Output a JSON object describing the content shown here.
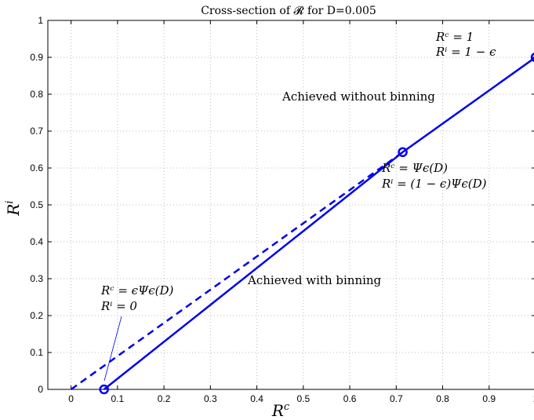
{
  "chart_data": {
    "type": "line",
    "title": "Cross-section of 𝓡 for D=0.005",
    "xlabel": "R",
    "xlabel_sup": "c",
    "ylabel": "R",
    "ylabel_sup": "i",
    "xlim": [
      -0.05,
      1.0
    ],
    "ylim": [
      0,
      1.0
    ],
    "xticks": [
      "0",
      "0.1",
      "0.2",
      "0.3",
      "0.4",
      "0.5",
      "0.6",
      "0.7",
      "0.8",
      "0.9",
      "1"
    ],
    "yticks": [
      "0",
      "0.1",
      "0.2",
      "0.3",
      "0.4",
      "0.5",
      "0.6",
      "0.7",
      "0.8",
      "0.9",
      "1"
    ],
    "grid": true,
    "color": "#0000ee",
    "series": [
      {
        "style": "solid",
        "x": [
          0.071,
          0.714,
          1.0
        ],
        "y": [
          0.0,
          0.643,
          0.9
        ]
      },
      {
        "style": "dashed",
        "x": [
          0.0,
          0.714
        ],
        "y": [
          0.0,
          0.643
        ]
      }
    ],
    "markers": [
      {
        "x": 0.071,
        "y": 0.0
      },
      {
        "x": 0.714,
        "y": 0.643
      },
      {
        "x": 1.0,
        "y": 0.9
      }
    ],
    "annotations": [
      {
        "text": "Achieved without binning"
      },
      {
        "text": "Achieved with binning"
      },
      {
        "lines": [
          "Rᶜ = 1",
          "Rⁱ = 1 − ϵ"
        ]
      },
      {
        "lines": [
          "Rᶜ = Ψϵ(D)",
          "Rⁱ = (1 − ϵ)Ψϵ(D)"
        ]
      },
      {
        "lines": [
          "Rᶜ = ϵΨϵ(D)",
          "Rⁱ = 0"
        ]
      }
    ]
  }
}
